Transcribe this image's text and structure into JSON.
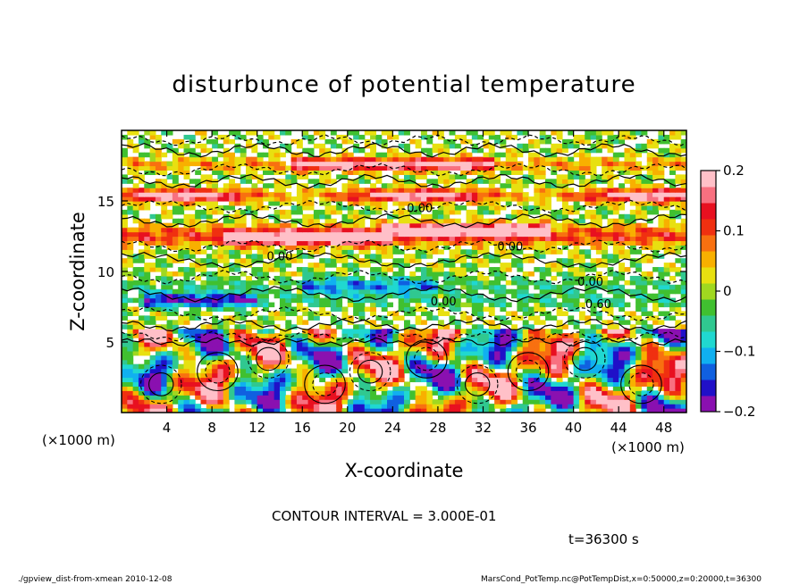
{
  "chart_data": {
    "type": "heatmap",
    "title": "disturbunce of potential temperature",
    "xlabel": "X-coordinate",
    "ylabel": "Z-coordinate",
    "x_unit_left": "(×1000 m)",
    "x_unit_right": "(×1000 m)",
    "xlim": [
      0,
      50
    ],
    "ylim": [
      0,
      20
    ],
    "x_ticks": [
      4,
      8,
      12,
      16,
      20,
      24,
      28,
      32,
      36,
      40,
      44,
      48
    ],
    "y_ticks": [
      5,
      10,
      15
    ],
    "colorbar": {
      "range": [
        -0.2,
        0.2
      ],
      "ticks": [
        {
          "value": 0.2,
          "label": "0.2"
        },
        {
          "value": 0.1,
          "label": "0.1"
        },
        {
          "value": 0,
          "label": "0"
        },
        {
          "value": -0.1,
          "label": "−0.1"
        },
        {
          "value": -0.2,
          "label": "−0.2"
        }
      ],
      "colors": [
        "#8a10b0",
        "#2010c8",
        "#1060e0",
        "#10b0f0",
        "#20d8d0",
        "#30c890",
        "#40c030",
        "#a0d820",
        "#e8e010",
        "#f8b000",
        "#f87010",
        "#f03010",
        "#e81020",
        "#f87080",
        "#ffc0c8"
      ]
    },
    "contour_interval_text": "CONTOUR INTERVAL = 3.000E-01",
    "contour_labels": [
      {
        "text": "0.00",
        "x": 26.4,
        "z": 14.2
      },
      {
        "text": "0.00",
        "x": 34.4,
        "z": 11.5
      },
      {
        "text": "0.00",
        "x": 41.5,
        "z": 9.0
      },
      {
        "text": "0.60",
        "x": 42.2,
        "z": 7.4
      },
      {
        "text": "0.00",
        "x": 28.5,
        "z": 7.6
      },
      {
        "text": "0.00",
        "x": 14.0,
        "z": 10.8
      }
    ],
    "time_label": "t=36300 s"
  },
  "footer": {
    "left": "./gpview_dist-from-xmean   2010-12-08",
    "right": "MarsCond_PotTemp.nc@PotTempDist,x=0:50000,z=0:20000,t=36300"
  }
}
